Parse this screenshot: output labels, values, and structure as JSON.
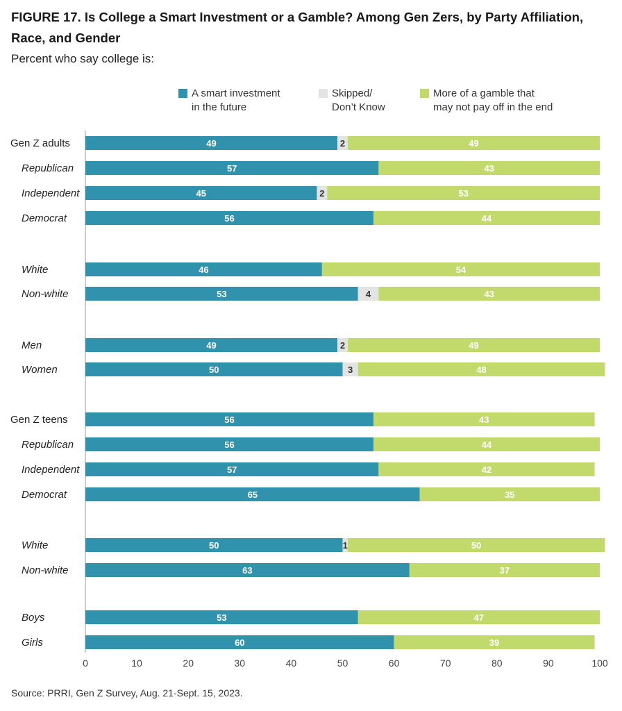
{
  "title": "FIGURE 17.  Is College a Smart Investment or a Gamble? Among Gen Zers, by Party Affiliation, Race, and Gender",
  "subtitle": "Percent who say college is:",
  "source": "Source: PRRI, Gen Z Survey, Aug. 21-Sept. 15, 2023.",
  "legend": {
    "smart_line1": "A smart investment",
    "smart_line2": "in the future",
    "skip_line1": "Skipped/",
    "skip_line2": "Don’t Know",
    "gamble_line1": "More of a gamble that",
    "gamble_line2": "may not pay off in the end"
  },
  "colors": {
    "smart": "#3192ad",
    "skipped": "#e3e3e3",
    "gamble": "#c2d96b"
  },
  "chart_data": {
    "type": "bar",
    "orientation": "horizontal",
    "stacked": true,
    "xlim": [
      0,
      100
    ],
    "xticks": [
      0,
      10,
      20,
      30,
      40,
      50,
      60,
      70,
      80,
      90,
      100
    ],
    "series": [
      {
        "name": "A smart investment in the future",
        "values": [
          49,
          57,
          45,
          56,
          46,
          53,
          49,
          50,
          56,
          56,
          57,
          65,
          50,
          63,
          53,
          60
        ]
      },
      {
        "name": "Skipped/Don’t Know",
        "values": [
          2,
          0,
          2,
          0,
          0,
          4,
          2,
          3,
          0,
          0,
          0,
          0,
          1,
          0,
          0,
          0
        ]
      },
      {
        "name": "More of a gamble that may not pay off in the end",
        "values": [
          49,
          43,
          53,
          44,
          54,
          43,
          49,
          48,
          43,
          44,
          42,
          35,
          50,
          37,
          47,
          39
        ]
      }
    ],
    "categories": [
      "Gen Z adults",
      "Republican",
      "Independent",
      "Democrat",
      "White",
      "Non-white",
      "Men",
      "Women",
      "Gen Z teens",
      "Republican",
      "Independent",
      "Democrat",
      "White",
      "Non-white",
      "Boys",
      "Girls"
    ],
    "category_italic": [
      false,
      true,
      true,
      true,
      true,
      true,
      true,
      true,
      false,
      true,
      true,
      true,
      true,
      true,
      true,
      true
    ]
  }
}
